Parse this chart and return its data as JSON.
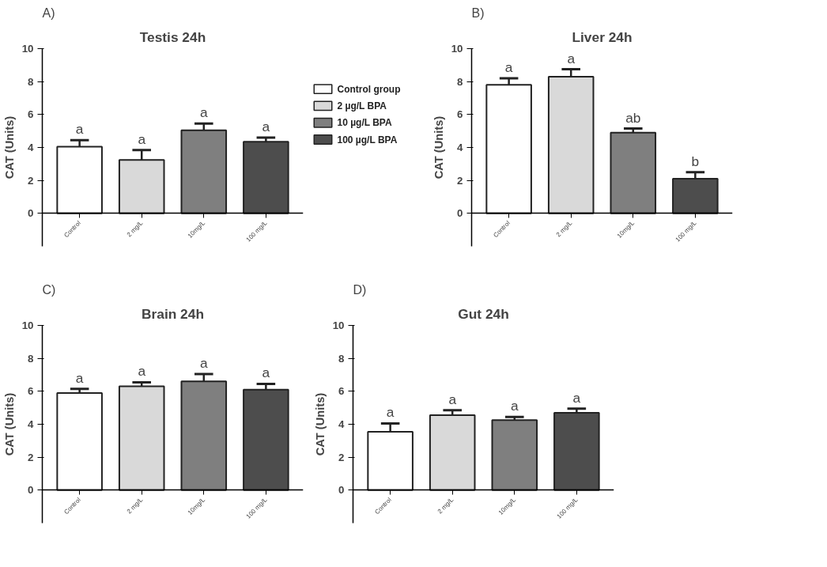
{
  "chart_data": [
    {
      "type": "bar",
      "title": "Testis 24h",
      "ylabel": "CAT (Units)",
      "categories": [
        "Control",
        "2 mg/L",
        "10mg/L",
        "100 mg/L"
      ],
      "ylim": [
        -2,
        10
      ],
      "yticks": [
        0,
        2,
        4,
        6,
        8,
        10
      ],
      "grid": false,
      "legend": "right",
      "series": [
        {
          "name": "Control group",
          "color": "#ffffff",
          "values": [
            4.05,
            null,
            null,
            null
          ],
          "errors": [
            [
              4.05,
              4.45
            ],
            null,
            null,
            null
          ]
        },
        {
          "name": "2 µg/L BPA",
          "color": "#d9d9d9",
          "values": [
            null,
            3.25,
            null,
            null
          ],
          "errors": [
            null,
            [
              3.25,
              3.85
            ],
            null,
            null
          ]
        },
        {
          "name": "10 µg/L BPA",
          "color": "#7f7f7f",
          "values": [
            null,
            null,
            5.05,
            null
          ],
          "errors": [
            null,
            null,
            [
              5.05,
              5.45
            ],
            null
          ]
        },
        {
          "name": "100 µg/L BPA",
          "color": "#4d4d4d",
          "values": [
            null,
            null,
            null,
            4.35
          ],
          "errors": [
            null,
            null,
            null,
            [
              4.35,
              4.6
            ]
          ]
        }
      ],
      "annotations": [
        "A)",
        {
          "text": "a",
          "x": "Control",
          "y": 4.45
        },
        {
          "text": "a",
          "x": "2 mg/L",
          "y": 3.85
        },
        {
          "text": "a",
          "x": "10mg/L",
          "y": 5.45
        },
        {
          "text": "a",
          "x": "100 mg/L",
          "y": 4.6
        }
      ]
    },
    {
      "type": "bar",
      "title": "Liver 24h",
      "ylabel": "CAT (Units)",
      "categories": [
        "Control",
        "2 mg/L",
        "10mg/L",
        "100 mg/L"
      ],
      "ylim": [
        -2,
        10
      ],
      "yticks": [
        0,
        2,
        4,
        6,
        8,
        10
      ],
      "grid": false,
      "series": [
        {
          "color": "#ffffff",
          "values": [
            7.8,
            null,
            null,
            null
          ],
          "errors": [
            [
              7.8,
              8.2
            ],
            null,
            null,
            null
          ]
        },
        {
          "color": "#d9d9d9",
          "values": [
            null,
            8.3,
            null,
            null
          ],
          "errors": [
            null,
            [
              8.3,
              8.75
            ],
            null,
            null
          ]
        },
        {
          "color": "#7f7f7f",
          "values": [
            null,
            null,
            4.9,
            null
          ],
          "errors": [
            null,
            null,
            [
              4.9,
              5.15
            ],
            null
          ]
        },
        {
          "color": "#4d4d4d",
          "values": [
            null,
            null,
            null,
            2.1
          ],
          "errors": [
            null,
            null,
            null,
            [
              2.1,
              2.5
            ]
          ]
        }
      ],
      "annotations": [
        "B)",
        {
          "text": "a",
          "x": "Control",
          "y": 8.2
        },
        {
          "text": "a",
          "x": "2 mg/L",
          "y": 8.75
        },
        {
          "text": "ab",
          "x": "10mg/L",
          "y": 5.15
        },
        {
          "text": "b",
          "x": "100 mg/L",
          "y": 2.5
        }
      ]
    },
    {
      "type": "bar",
      "title": "Brain 24h",
      "ylabel": "CAT (Units)",
      "categories": [
        "Control",
        "2 mg/L",
        "10mg/L",
        "100 mg/L"
      ],
      "ylim": [
        -2,
        10
      ],
      "yticks": [
        0,
        2,
        4,
        6,
        8,
        10
      ],
      "grid": false,
      "series": [
        {
          "color": "#ffffff",
          "values": [
            5.9,
            null,
            null,
            null
          ],
          "errors": [
            [
              5.9,
              6.15
            ],
            null,
            null,
            null
          ]
        },
        {
          "color": "#d9d9d9",
          "values": [
            null,
            6.3,
            null,
            null
          ],
          "errors": [
            null,
            [
              6.3,
              6.55
            ],
            null,
            null
          ]
        },
        {
          "color": "#7f7f7f",
          "values": [
            null,
            null,
            6.6,
            null
          ],
          "errors": [
            null,
            null,
            [
              6.6,
              7.05
            ],
            null
          ]
        },
        {
          "color": "#4d4d4d",
          "values": [
            null,
            null,
            null,
            6.1
          ],
          "errors": [
            null,
            null,
            null,
            [
              6.1,
              6.45
            ]
          ]
        }
      ],
      "annotations": [
        "C)",
        {
          "text": "a",
          "x": "Control",
          "y": 6.15
        },
        {
          "text": "a",
          "x": "2 mg/L",
          "y": 6.55
        },
        {
          "text": "a",
          "x": "10mg/L",
          "y": 7.05
        },
        {
          "text": "a",
          "x": "100 mg/L",
          "y": 6.45
        }
      ]
    },
    {
      "type": "bar",
      "title": "Gut 24h",
      "ylabel": "CAT (Units)",
      "categories": [
        "Control",
        "2 mg/L",
        "10mg/L",
        "100 mg/L"
      ],
      "ylim": [
        -2,
        10
      ],
      "yticks": [
        0,
        2,
        4,
        6,
        8,
        10
      ],
      "grid": false,
      "series": [
        {
          "color": "#ffffff",
          "values": [
            3.55,
            null,
            null,
            null
          ],
          "errors": [
            [
              3.55,
              4.05
            ],
            null,
            null,
            null
          ]
        },
        {
          "color": "#d9d9d9",
          "values": [
            null,
            4.55,
            null,
            null
          ],
          "errors": [
            null,
            [
              4.55,
              4.85
            ],
            null,
            null
          ]
        },
        {
          "color": "#7f7f7f",
          "values": [
            null,
            null,
            4.25,
            null
          ],
          "errors": [
            null,
            null,
            [
              4.25,
              4.45
            ],
            null
          ]
        },
        {
          "color": "#4d4d4d",
          "values": [
            null,
            null,
            null,
            4.7
          ],
          "errors": [
            null,
            null,
            null,
            [
              4.7,
              4.95
            ]
          ]
        }
      ],
      "annotations": [
        "D)",
        {
          "text": "a",
          "x": "Control",
          "y": 4.05
        },
        {
          "text": "a",
          "x": "2 mg/L",
          "y": 4.85
        },
        {
          "text": "a",
          "x": "10mg/L",
          "y": 4.45
        },
        {
          "text": "a",
          "x": "100 mg/L",
          "y": 4.95
        }
      ]
    }
  ]
}
